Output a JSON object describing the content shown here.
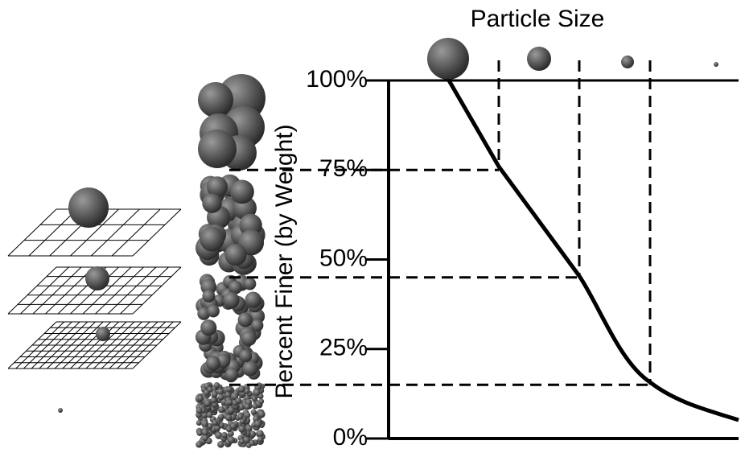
{
  "diagram": {
    "title": "Particle Size",
    "y_label": "Percent Finer (by Weight)",
    "ylim": [
      0,
      100
    ],
    "yticks": [
      {
        "value": 0,
        "label": "0%"
      },
      {
        "value": 25,
        "label": "25%"
      },
      {
        "value": 50,
        "label": "50%"
      },
      {
        "value": 75,
        "label": "75%"
      },
      {
        "value": 100,
        "label": "100%"
      }
    ],
    "reference_levels": [
      75,
      45,
      15
    ]
  }
}
